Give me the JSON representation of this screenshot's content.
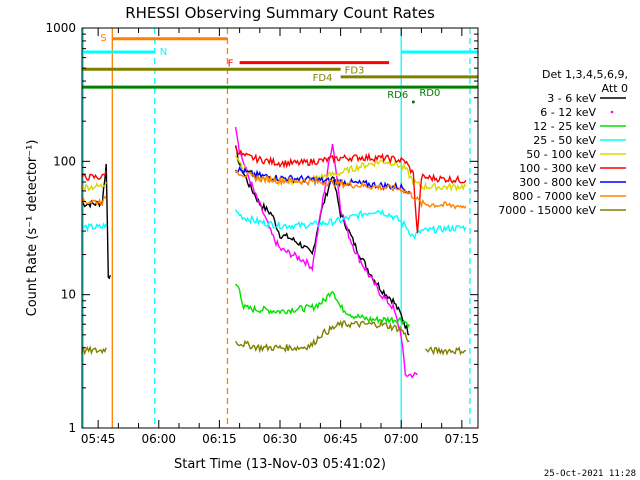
{
  "colors": {
    "black": "#000000",
    "magenta": "#ff00ff",
    "green": "#00e000",
    "cyan": "#00ffff",
    "yellow": "#d8d800",
    "red": "#ff0000",
    "blue": "#0000ff",
    "orange": "#ff8000",
    "olive": "#808000",
    "darkgreen": "#008000",
    "cyan_bar": "#33ccff"
  },
  "chart_data": {
    "type": "line",
    "title": "RHESSI Observing Summary Count Rates",
    "xlabel": "Start Time (13-Nov-03 05:41:02)",
    "ylabel": "Count Rate (s⁻¹ detector⁻¹)",
    "y_scale": "log",
    "ylim": [
      1,
      1000
    ],
    "xlim": [
      "05:41",
      "07:19"
    ],
    "x_ticks": [
      "05:45",
      "06:00",
      "06:15",
      "06:30",
      "06:45",
      "07:00",
      "07:15"
    ],
    "y_ticks": [
      "1",
      "10",
      "100",
      "1000"
    ],
    "timestamp": "25-Oct-2021 11:28",
    "legend": {
      "placement": "right",
      "header": [
        "Det 1,3,4,5,6,9,",
        "Att 0"
      ],
      "entries": [
        {
          "label": "3 - 6 keV",
          "color": "#000000"
        },
        {
          "label": "6 - 12 keV",
          "color": "#ff00ff"
        },
        {
          "label": "12 - 25 keV",
          "color": "#00e000"
        },
        {
          "label": "25 - 50 keV",
          "color": "#00ffff"
        },
        {
          "label": "50 - 100 keV",
          "color": "#d8d800"
        },
        {
          "label": "100 - 300 keV",
          "color": "#ff0000"
        },
        {
          "label": "300 - 800 keV",
          "color": "#0000ff"
        },
        {
          "label": "800 - 7000 keV",
          "color": "#ff8000"
        },
        {
          "label": "7000 - 15000 keV",
          "color": "#808000"
        }
      ]
    },
    "flag_bars": [
      {
        "label": "S",
        "start": "05:48.5",
        "end": "06:17",
        "y": 830,
        "color": "#ff8000"
      },
      {
        "label": "N",
        "start": "05:41",
        "end": "05:59",
        "y": 660,
        "color": "#00ffff"
      },
      {
        "label": "N",
        "start": "07:00",
        "end": "07:19",
        "y": 660,
        "color": "#00ffff"
      },
      {
        "label": "F",
        "start": "06:20",
        "end": "06:57",
        "y": 550,
        "color": "#ff0000"
      },
      {
        "label": "FD3",
        "start": "05:41",
        "end": "06:45",
        "y": 490,
        "color": "#808000"
      },
      {
        "label": "FD4",
        "start": "06:45",
        "end": "07:19",
        "y": 430,
        "color": "#808000"
      },
      {
        "label": "RD6",
        "start": "05:41",
        "end": "07:19",
        "y": 360,
        "color": "#008000"
      },
      {
        "label": "RD0",
        "start": "07:03",
        "end": "07:03",
        "y": 320,
        "color": "#008000"
      }
    ],
    "vertical_lines": [
      {
        "time": "05:41.3",
        "color": "#00ffff",
        "style": "solid"
      },
      {
        "time": "05:48.5",
        "color": "#ff8000",
        "style": "solid"
      },
      {
        "time": "05:59",
        "color": "#00ffff",
        "style": "dashed"
      },
      {
        "time": "06:17",
        "color": "#ff8000",
        "style": "dashed"
      },
      {
        "time": "07:00",
        "color": "#00ffff",
        "style": "solid"
      },
      {
        "time": "07:17",
        "color": "#00ffff",
        "style": "dashed"
      }
    ],
    "series": [
      {
        "name": "3 - 6 keV",
        "color": "#000000",
        "segments": [
          [
            [
              "05:41",
              48
            ],
            [
              "05:44",
              48
            ],
            [
              "05:46",
              49
            ],
            [
              "05:47",
              95
            ],
            [
              "05:47.5",
              14
            ],
            [
              "05:48",
              14
            ]
          ],
          [
            [
              "06:19",
              125
            ],
            [
              "06:20",
              95
            ],
            [
              "06:22",
              70
            ],
            [
              "06:25",
              48
            ],
            [
              "06:28",
              40
            ],
            [
              "06:30",
              28
            ],
            [
              "06:32",
              27
            ],
            [
              "06:35",
              24
            ],
            [
              "06:38",
              20
            ],
            [
              "06:40",
              40
            ],
            [
              "06:43",
              80
            ],
            [
              "06:45",
              40
            ],
            [
              "06:47",
              30
            ],
            [
              "06:49",
              22
            ],
            [
              "06:52",
              15
            ],
            [
              "06:55",
              11
            ],
            [
              "06:58",
              9
            ],
            [
              "07:00",
              7
            ],
            [
              "07:02",
              5
            ]
          ]
        ]
      },
      {
        "name": "6 - 12 keV",
        "color": "#ff00ff",
        "segments": [
          [
            [
              "06:19",
              190
            ],
            [
              "06:20",
              120
            ],
            [
              "06:22",
              80
            ],
            [
              "06:24",
              55
            ],
            [
              "06:26",
              40
            ],
            [
              "06:28",
              28
            ],
            [
              "06:30",
              22
            ],
            [
              "06:33",
              20
            ],
            [
              "06:36",
              18
            ],
            [
              "06:38",
              16
            ],
            [
              "06:40",
              40
            ],
            [
              "06:43",
              140
            ],
            [
              "06:45",
              45
            ],
            [
              "06:47",
              28
            ],
            [
              "06:49",
              20
            ],
            [
              "06:52",
              14
            ],
            [
              "06:55",
              10
            ],
            [
              "06:58",
              8
            ],
            [
              "07:00",
              5
            ],
            [
              "07:01",
              2.5
            ],
            [
              "07:04",
              2.5
            ]
          ]
        ]
      },
      {
        "name": "12 - 25 keV",
        "color": "#00e000",
        "segments": [
          [
            [
              "06:19",
              12
            ],
            [
              "06:20",
              11
            ],
            [
              "06:21",
              8
            ],
            [
              "06:23",
              7.8
            ],
            [
              "06:26",
              7.7
            ],
            [
              "06:30",
              7.5
            ],
            [
              "06:34",
              7.8
            ],
            [
              "06:38",
              8
            ],
            [
              "06:41",
              9
            ],
            [
              "06:43",
              11
            ],
            [
              "06:45",
              8
            ],
            [
              "06:48",
              7
            ],
            [
              "06:52",
              6.5
            ],
            [
              "06:56",
              6.5
            ],
            [
              "07:00",
              6.5
            ],
            [
              "07:02",
              6
            ]
          ]
        ]
      },
      {
        "name": "25 - 50 keV",
        "color": "#00ffff",
        "segments": [
          [
            [
              "05:41",
              32
            ],
            [
              "05:46",
              32
            ],
            [
              "05:47",
              34
            ]
          ],
          [
            [
              "06:19",
              42
            ],
            [
              "06:21",
              38
            ],
            [
              "06:25",
              35
            ],
            [
              "06:30",
              33
            ],
            [
              "06:35",
              33
            ],
            [
              "06:40",
              34
            ],
            [
              "06:45",
              36
            ],
            [
              "06:50",
              40
            ],
            [
              "06:54",
              43
            ],
            [
              "06:57",
              40
            ],
            [
              "06:59",
              37
            ],
            [
              "07:01",
              33
            ],
            [
              "07:03",
              27
            ],
            [
              "07:05",
              30
            ],
            [
              "07:10",
              31
            ],
            [
              "07:16",
              32
            ]
          ]
        ]
      },
      {
        "name": "50 - 100 keV",
        "color": "#d8d800",
        "segments": [
          [
            [
              "05:41",
              64
            ],
            [
              "05:46",
              65
            ],
            [
              "05:47",
              70
            ]
          ],
          [
            [
              "06:19",
              115
            ],
            [
              "06:21",
              88
            ],
            [
              "06:25",
              75
            ],
            [
              "06:30",
              70
            ],
            [
              "06:35",
              72
            ],
            [
              "06:40",
              76
            ],
            [
              "06:45",
              82
            ],
            [
              "06:50",
              92
            ],
            [
              "06:55",
              100
            ],
            [
              "06:58",
              98
            ],
            [
              "07:01",
              88
            ],
            [
              "07:03",
              70
            ],
            [
              "07:05",
              65
            ],
            [
              "07:10",
              64
            ],
            [
              "07:16",
              65
            ]
          ]
        ]
      },
      {
        "name": "100 - 300 keV",
        "color": "#ff0000",
        "segments": [
          [
            [
              "05:41",
              76
            ],
            [
              "05:46",
              76
            ],
            [
              "05:47",
              85
            ]
          ],
          [
            [
              "06:19",
              125
            ],
            [
              "06:21",
              110
            ],
            [
              "06:25",
              103
            ],
            [
              "06:30",
              97
            ],
            [
              "06:35",
              97
            ],
            [
              "06:40",
              101
            ],
            [
              "06:45",
              106
            ],
            [
              "06:50",
              107
            ],
            [
              "06:55",
              106
            ],
            [
              "06:58",
              104
            ],
            [
              "07:01",
              100
            ],
            [
              "07:03",
              80
            ],
            [
              "07:04",
              28
            ],
            [
              "07:05",
              76
            ],
            [
              "07:10",
              74
            ],
            [
              "07:16",
              72
            ]
          ]
        ]
      },
      {
        "name": "300 - 800 keV",
        "color": "#0000ff",
        "segments": [
          [
            [
              "06:19",
              88
            ],
            [
              "06:22",
              82
            ],
            [
              "06:25",
              78
            ],
            [
              "06:30",
              75
            ],
            [
              "06:35",
              74
            ],
            [
              "06:40",
              72
            ],
            [
              "06:45",
              70
            ],
            [
              "06:50",
              68
            ],
            [
              "06:55",
              66
            ],
            [
              "07:00",
              64
            ],
            [
              "07:02",
              60
            ]
          ]
        ]
      },
      {
        "name": "800 - 7000 keV",
        "color": "#ff8000",
        "segments": [
          [
            [
              "05:41",
              50
            ],
            [
              "05:46",
              50
            ],
            [
              "05:47",
              52
            ]
          ],
          [
            [
              "06:19",
              85
            ],
            [
              "06:22",
              78
            ],
            [
              "06:25",
              74
            ],
            [
              "06:30",
              72
            ],
            [
              "06:35",
              71
            ],
            [
              "06:40",
              70
            ],
            [
              "06:45",
              68
            ],
            [
              "06:50",
              66
            ],
            [
              "06:55",
              64
            ],
            [
              "07:00",
              62
            ],
            [
              "07:03",
              55
            ],
            [
              "07:05",
              48
            ],
            [
              "07:10",
              47
            ],
            [
              "07:16",
              46
            ]
          ]
        ]
      },
      {
        "name": "7000 - 15000 keV",
        "color": "#808000",
        "segments": [
          [
            [
              "05:41",
              3.8
            ],
            [
              "05:46",
              3.8
            ],
            [
              "05:47",
              4
            ]
          ],
          [
            [
              "06:19",
              4.4
            ],
            [
              "06:25",
              4
            ],
            [
              "06:30",
              4
            ],
            [
              "06:35",
              4
            ],
            [
              "06:38",
              4.2
            ],
            [
              "06:40",
              5
            ],
            [
              "06:45",
              6
            ],
            [
              "06:50",
              6
            ],
            [
              "06:55",
              6
            ],
            [
              "07:00",
              5.5
            ],
            [
              "07:02",
              4.5
            ]
          ],
          [
            [
              "07:06",
              3.8
            ],
            [
              "07:10",
              3.8
            ],
            [
              "07:16",
              3.8
            ]
          ]
        ]
      }
    ]
  }
}
